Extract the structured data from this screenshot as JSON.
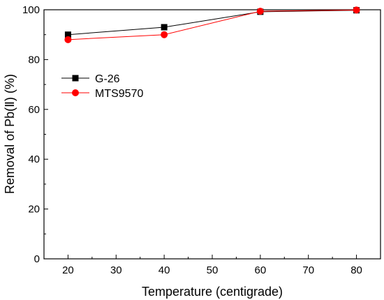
{
  "chart_data": {
    "type": "line",
    "xlabel": "Temperature (centigrade)",
    "ylabel": "Removal of Pb(Ⅱ) (%)",
    "xlim": [
      15,
      85
    ],
    "ylim": [
      0,
      100
    ],
    "xticks": [
      20,
      30,
      40,
      50,
      60,
      70,
      80
    ],
    "yticks": [
      0,
      20,
      40,
      60,
      80,
      100
    ],
    "grid": false,
    "legend_position": "left",
    "series": [
      {
        "name": "G-26",
        "marker": "square",
        "color": "#000000",
        "x": [
          20,
          40,
          60,
          80
        ],
        "y": [
          90.0,
          93.0,
          99.2,
          99.8
        ]
      },
      {
        "name": "MTS9570",
        "marker": "circle",
        "color": "#ff0000",
        "x": [
          20,
          40,
          60,
          80
        ],
        "y": [
          88.0,
          90.0,
          99.4,
          99.9
        ]
      }
    ]
  }
}
